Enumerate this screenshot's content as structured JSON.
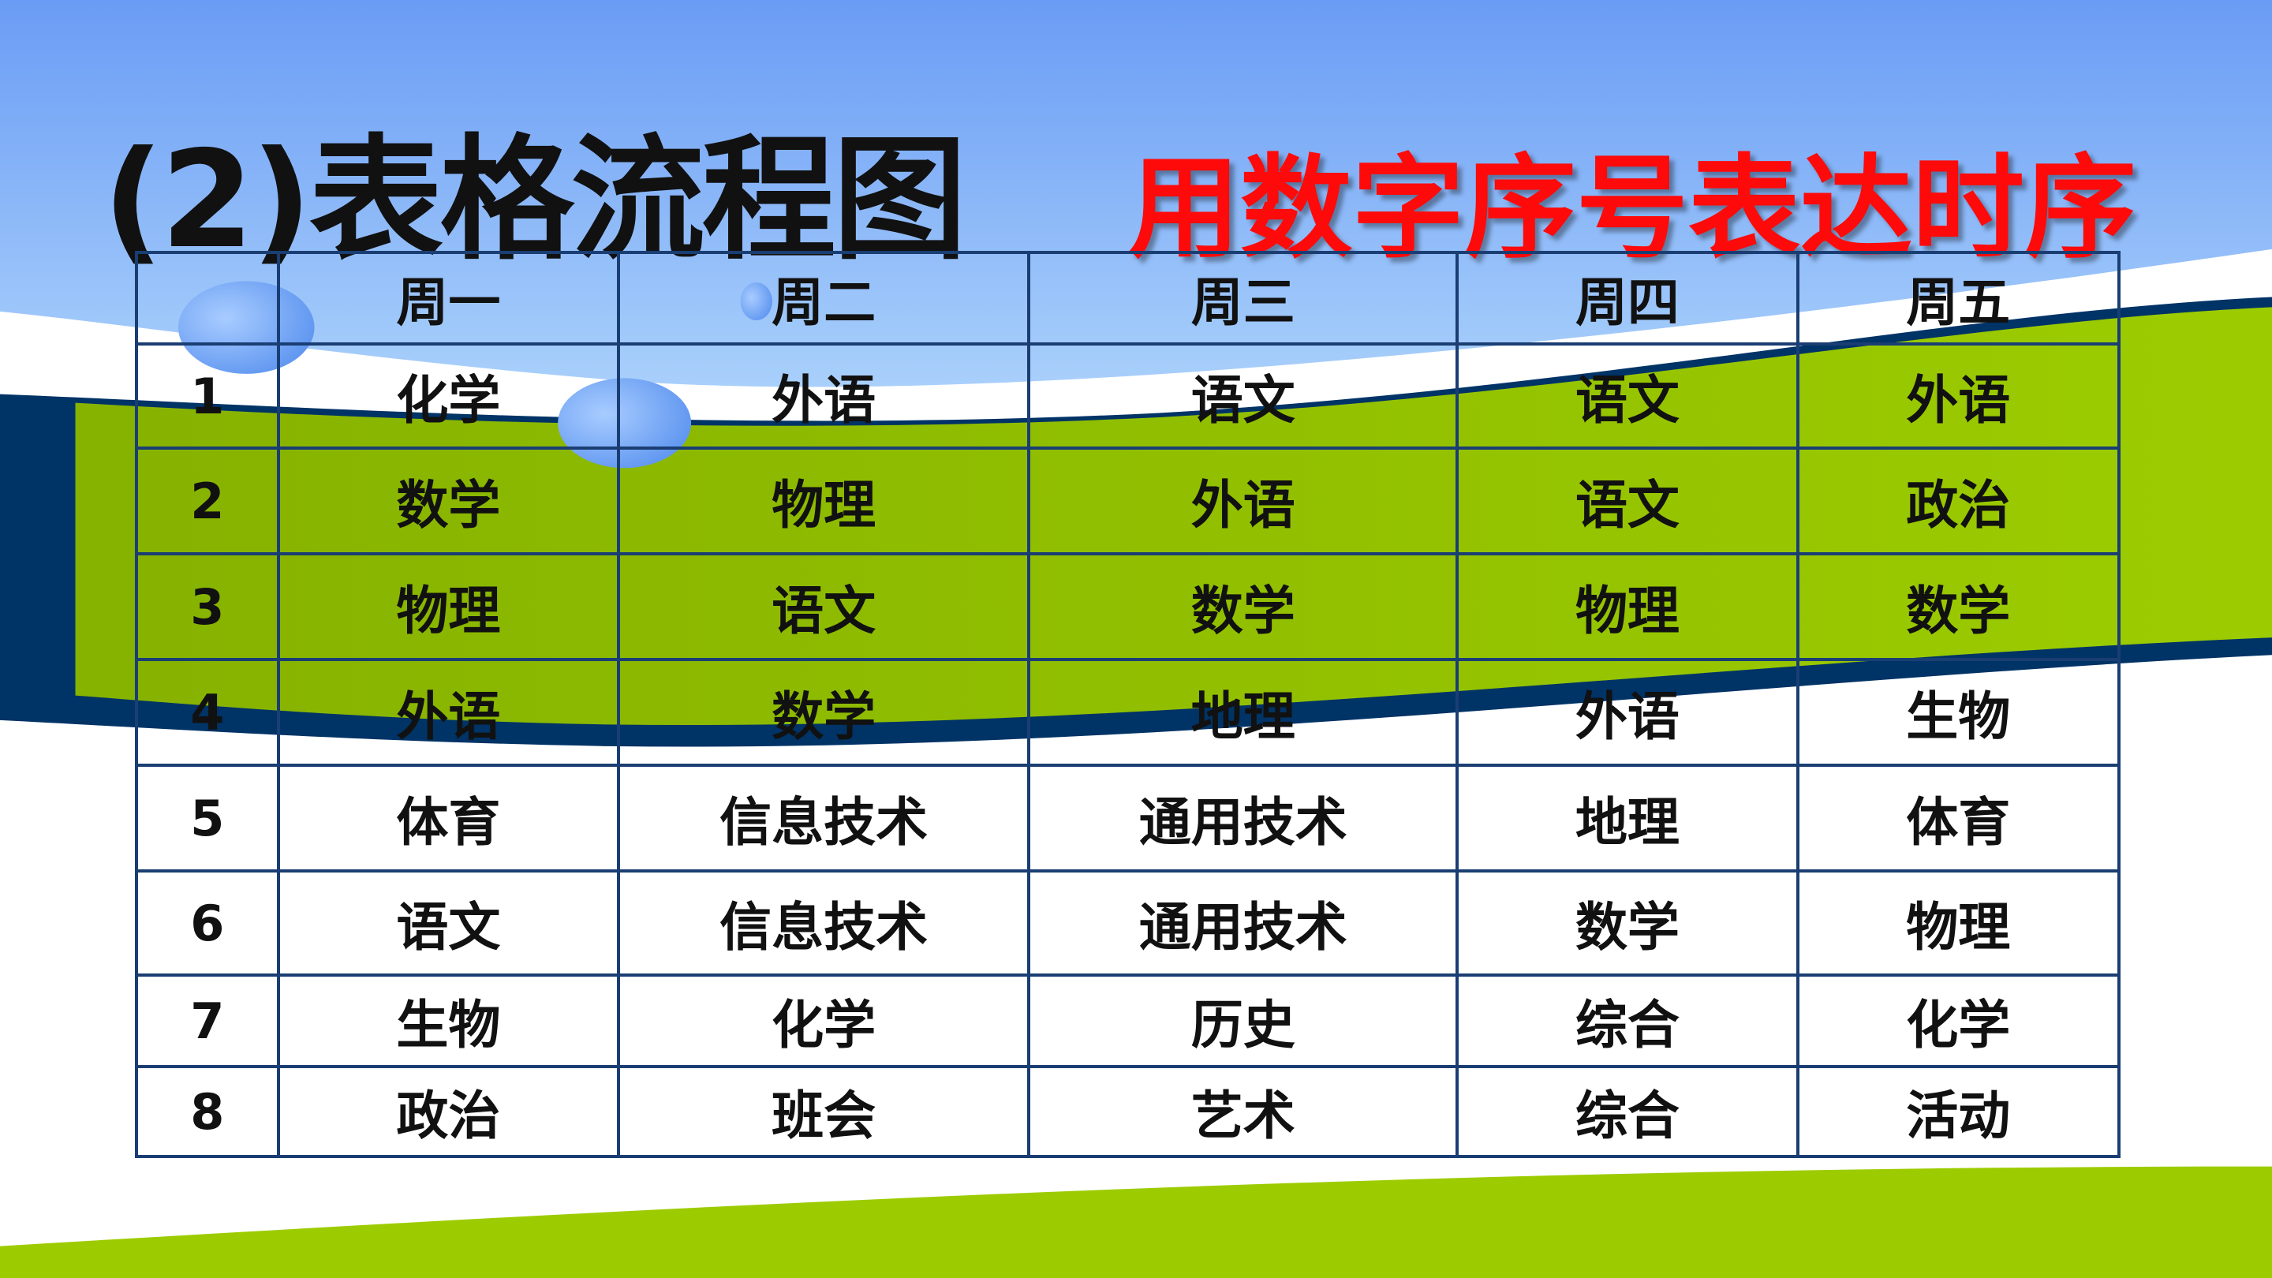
{
  "title": "(2)表格流程图",
  "subtitle": "用数字序号表达时序",
  "colors": {
    "title": "#111111",
    "subtitle": "#ff0a0a",
    "grid": "#1a3e73",
    "green": "#8ab800",
    "navy": "#003366",
    "sky": "#7aaef7"
  },
  "table": {
    "headers": [
      "",
      "周一",
      "周二",
      "周三",
      "周四",
      "周五"
    ],
    "rows": [
      [
        "1",
        "化学",
        "外语",
        "语文",
        "语文",
        "外语"
      ],
      [
        "2",
        "数学",
        "物理",
        "外语",
        "语文",
        "政治"
      ],
      [
        "3",
        "物理",
        "语文",
        "数学",
        "物理",
        "数学"
      ],
      [
        "4",
        "外语",
        "数学",
        "地理",
        "外语",
        "生物"
      ],
      [
        "5",
        "体育",
        "信息技术",
        "通用技术",
        "地理",
        "体育"
      ],
      [
        "6",
        "语文",
        "信息技术",
        "通用技术",
        "数学",
        "物理"
      ],
      [
        "7",
        "生物",
        "化学",
        "历史",
        "综合",
        "化学"
      ],
      [
        "8",
        "政治",
        "班会",
        "艺术",
        "综合",
        "活动"
      ]
    ]
  }
}
